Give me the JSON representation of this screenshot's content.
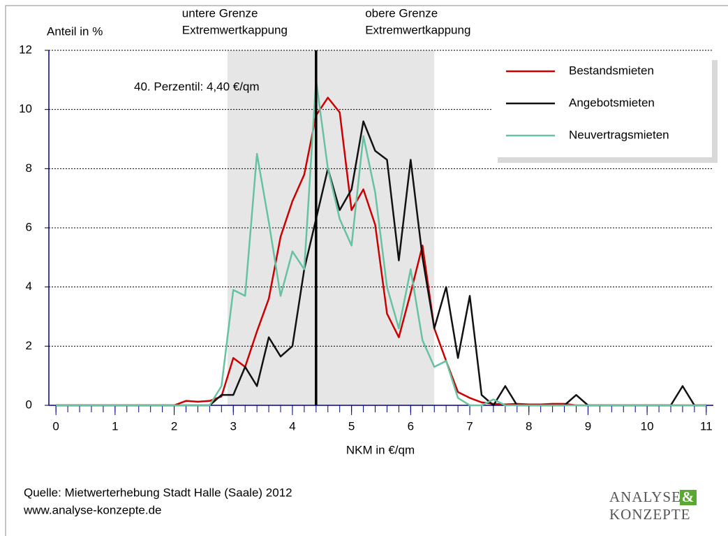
{
  "chart_data": {
    "type": "line",
    "y_label": "Anteil in %",
    "x_label": "NKM in €/qm",
    "x": [
      0,
      0.2,
      0.4,
      0.6,
      0.8,
      1,
      1.2,
      1.4,
      1.6,
      1.8,
      2,
      2.2,
      2.4,
      2.6,
      2.8,
      3,
      3.2,
      3.4,
      3.6,
      3.8,
      4,
      4.2,
      4.4,
      4.6,
      4.8,
      5,
      5.2,
      5.4,
      5.6,
      5.8,
      6,
      6.2,
      6.4,
      6.6,
      6.8,
      7,
      7.2,
      7.4,
      7.6,
      7.8,
      8,
      8.2,
      8.4,
      8.6,
      8.8,
      9,
      9.2,
      9.4,
      9.6,
      9.8,
      10,
      10.2,
      10.4,
      10.6,
      10.8,
      11
    ],
    "series": [
      {
        "name": "Bestandsmieten",
        "color": "#cc0000",
        "values": [
          0,
          0,
          0,
          0,
          0,
          0,
          0,
          0,
          0,
          0,
          0,
          0.15,
          0.12,
          0.15,
          0.3,
          1.6,
          1.3,
          2.5,
          3.6,
          5.7,
          6.9,
          7.8,
          9.8,
          10.4,
          9.9,
          6.6,
          7.3,
          6.1,
          3.1,
          2.3,
          3.8,
          5.4,
          2.6,
          1.5,
          0.45,
          0.25,
          0.1,
          0.05,
          0.03,
          0.05,
          0.03,
          0.03,
          0.05,
          0.05,
          0,
          0,
          0,
          0,
          0,
          0,
          0,
          0,
          0,
          0,
          0,
          0
        ]
      },
      {
        "name": "Angebotsmieten",
        "color": "#111111",
        "values": [
          0,
          0,
          0,
          0,
          0,
          0,
          0,
          0,
          0,
          0,
          0,
          0,
          0,
          0,
          0.35,
          0.35,
          1.3,
          0.65,
          2.3,
          1.65,
          2.0,
          4.6,
          6.3,
          8.0,
          6.6,
          7.3,
          9.6,
          8.6,
          8.3,
          4.9,
          8.3,
          5.0,
          2.6,
          4.0,
          1.6,
          3.7,
          0.35,
          0,
          0.65,
          0,
          0,
          0,
          0,
          0,
          0.35,
          0,
          0,
          0,
          0,
          0,
          0,
          0,
          0,
          0.65,
          0,
          0
        ]
      },
      {
        "name": "Neuvertragsmieten",
        "color": "#66c2a0",
        "values": [
          0,
          0,
          0,
          0,
          0,
          0,
          0,
          0,
          0,
          0,
          0,
          0,
          0,
          0,
          0.65,
          3.9,
          3.7,
          8.5,
          6.2,
          3.7,
          5.2,
          4.6,
          11.0,
          8.0,
          6.3,
          5.4,
          9.1,
          7.2,
          4.0,
          2.6,
          4.6,
          2.2,
          1.3,
          1.5,
          0.25,
          0,
          0,
          0.2,
          0,
          0,
          0,
          0,
          0,
          0,
          0,
          0,
          0,
          0,
          0,
          0,
          0,
          0,
          0,
          0,
          0,
          0
        ]
      }
    ],
    "xlim": [
      -0.12,
      11.12
    ],
    "xticks": [
      0,
      1,
      2,
      3,
      4,
      5,
      6,
      7,
      8,
      9,
      10,
      11
    ],
    "ylim": [
      0,
      12
    ],
    "yticks": [
      0,
      2,
      4,
      6,
      8,
      10,
      12
    ],
    "grid": true,
    "legend": "upper right",
    "lower_bound": 2.9,
    "upper_bound": 6.4,
    "percentile": 4.4,
    "lower_bound_label": [
      "untere Grenze",
      "Extremwertkappung"
    ],
    "upper_bound_label": [
      "obere Grenze",
      "Extremwertkappung"
    ],
    "percentile_label": "40. Perzentil: 4,40 €/qm",
    "source": [
      "Quelle: Mietwerterhebung Stadt Halle (Saale) 2012",
      "www.analyse-konzepte.de"
    ],
    "logo": [
      "ANALYSE",
      "&",
      "KONZEPTE"
    ]
  }
}
